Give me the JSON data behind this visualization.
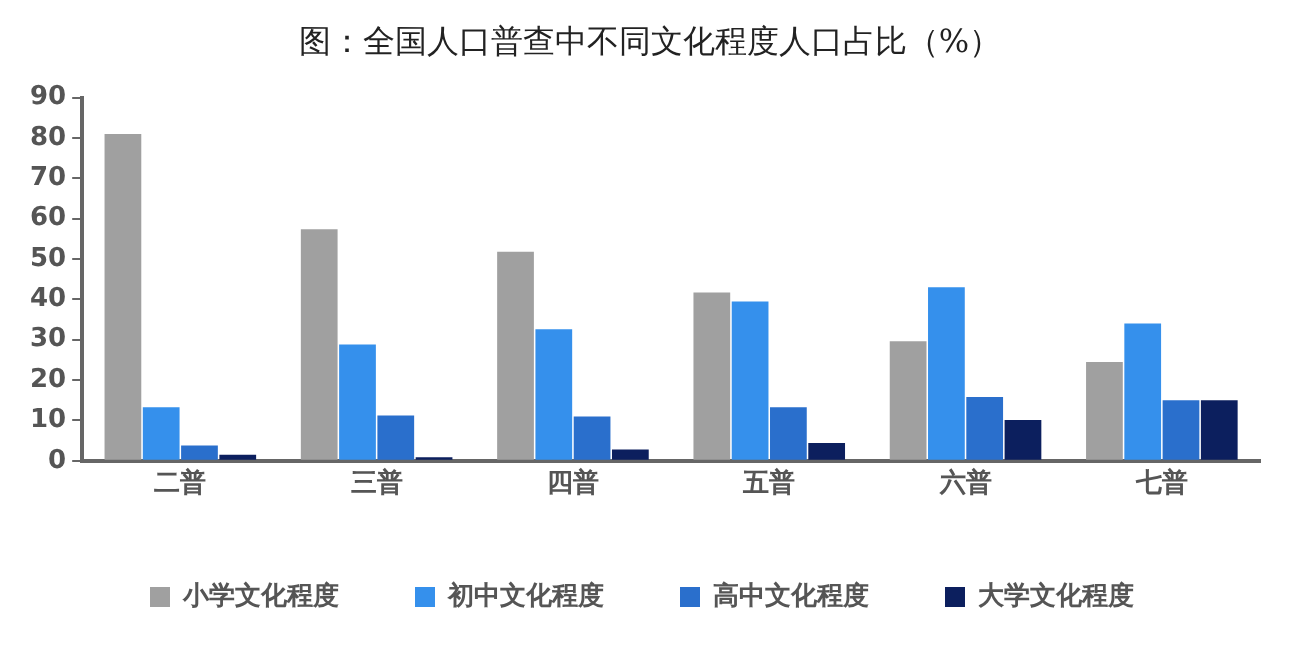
{
  "chart_data": {
    "type": "bar",
    "title": "图：全国人口普查中不同文化程度人口占比（%）",
    "categories": [
      "二普",
      "三普",
      "四普",
      "五普",
      "六普",
      "七普"
    ],
    "series": [
      {
        "name": "小学文化程度",
        "color": "#a0a0a0",
        "values": [
          81,
          57.4,
          51.8,
          41.7,
          29.6,
          24.5
        ]
      },
      {
        "name": "初中文化程度",
        "color": "#3590ec",
        "values": [
          13.3,
          28.8,
          32.6,
          39.5,
          43,
          34
        ]
      },
      {
        "name": "高中文化程度",
        "color": "#2a6fcc",
        "values": [
          3.8,
          11.2,
          11,
          13.3,
          15.8,
          15
        ]
      },
      {
        "name": "大学文化程度",
        "color": "#0c1f5e",
        "values": [
          1.5,
          0.9,
          2.8,
          4.4,
          10.1,
          15
        ]
      }
    ],
    "ylim": [
      0,
      90
    ],
    "yticks": [
      0,
      10,
      20,
      30,
      40,
      50,
      60,
      70,
      80,
      90
    ],
    "grid": false,
    "legend": "bottom"
  }
}
